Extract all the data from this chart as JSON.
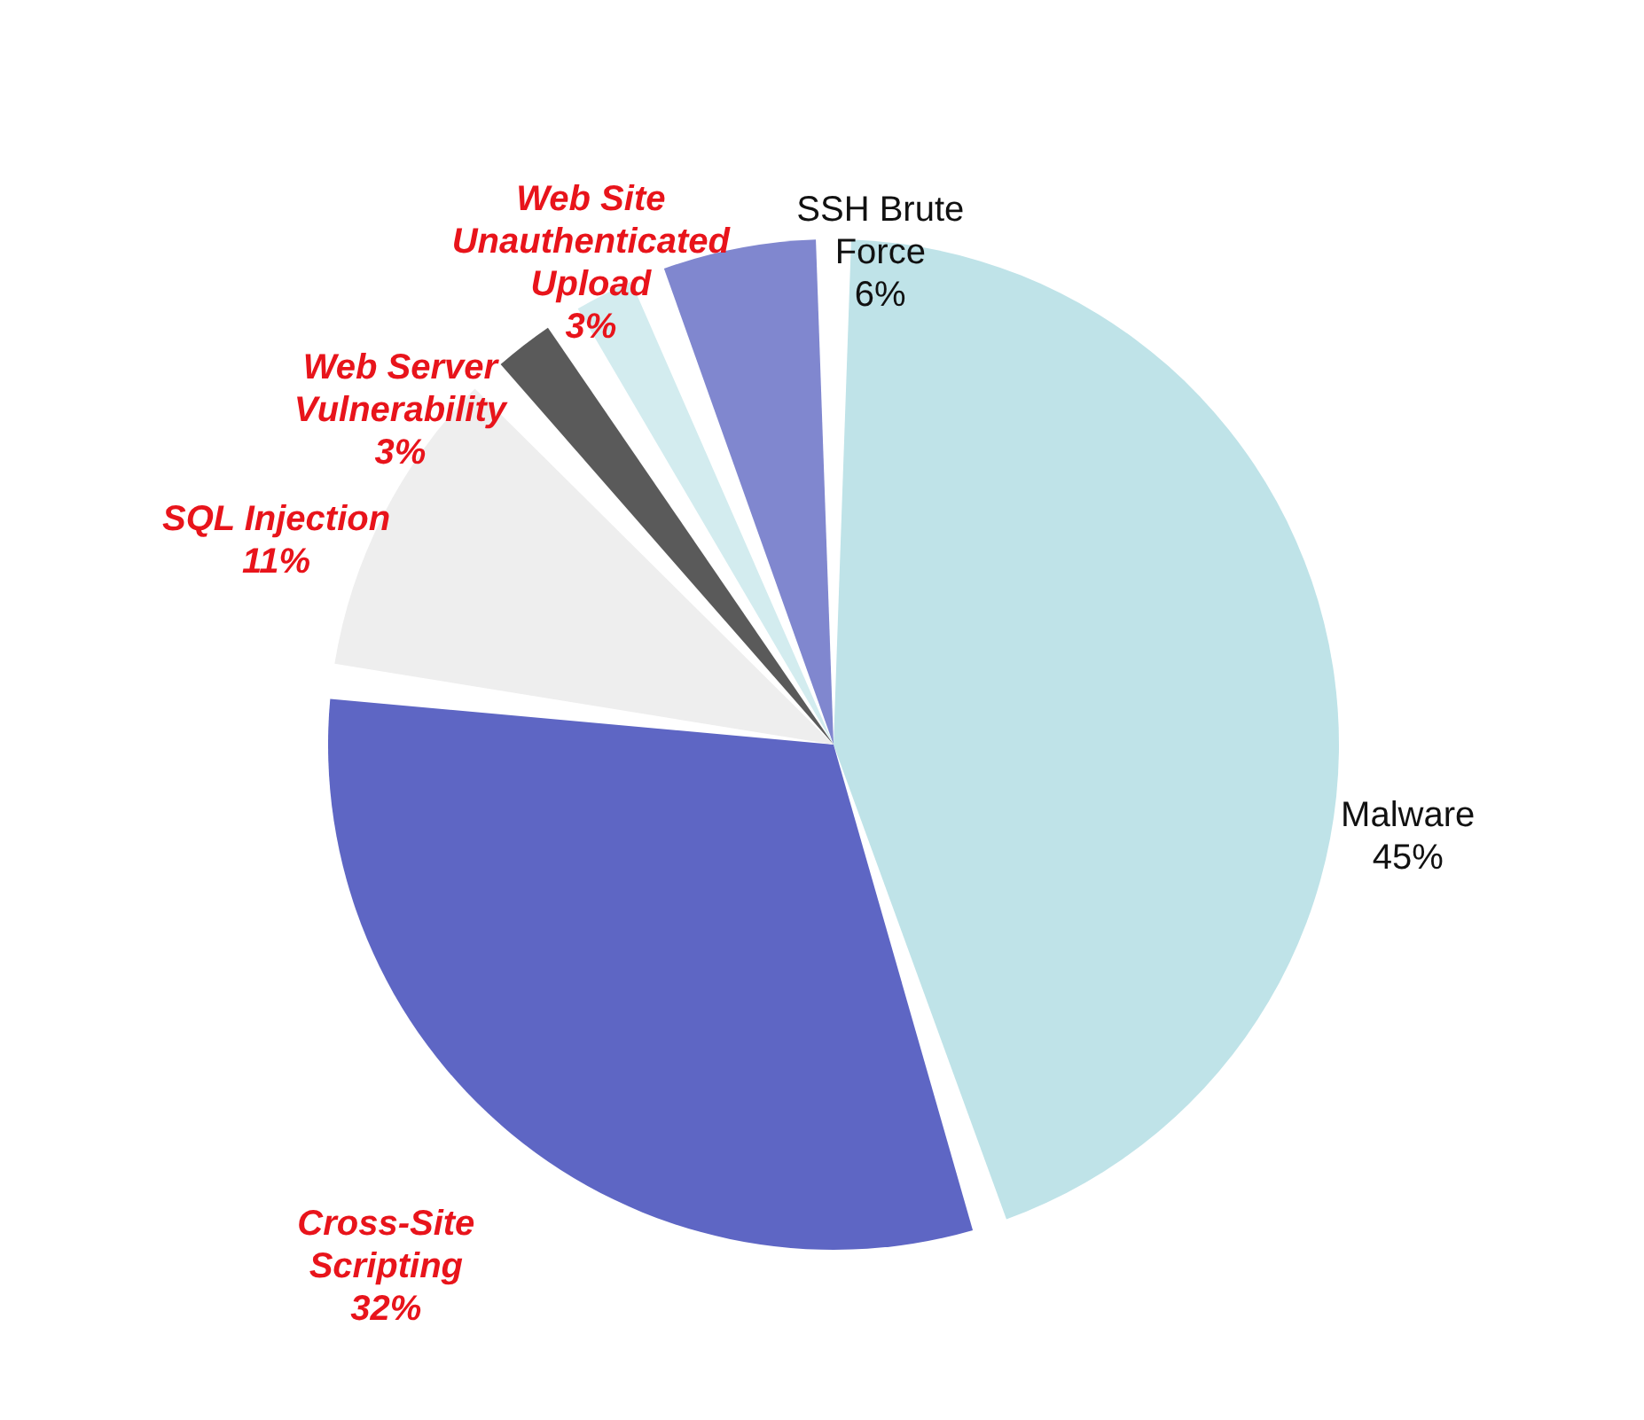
{
  "chart_data": {
    "type": "pie",
    "categories": [
      "Malware",
      "Cross-Site Scripting",
      "SQL Injection",
      "Web Server Vulnerability",
      "Web Site Unauthenticated Upload",
      "SSH Brute Force"
    ],
    "values": [
      45,
      32,
      11,
      3,
      3,
      6
    ],
    "value_labels": [
      "45%",
      "32%",
      "11%",
      "3%",
      "3%",
      "6%"
    ],
    "colors": [
      "#bfe3e8",
      "#5e66c4",
      "#eeeeee",
      "#5a5a5a",
      "#d3ecef",
      "#8087cf"
    ],
    "legend": false
  }
}
